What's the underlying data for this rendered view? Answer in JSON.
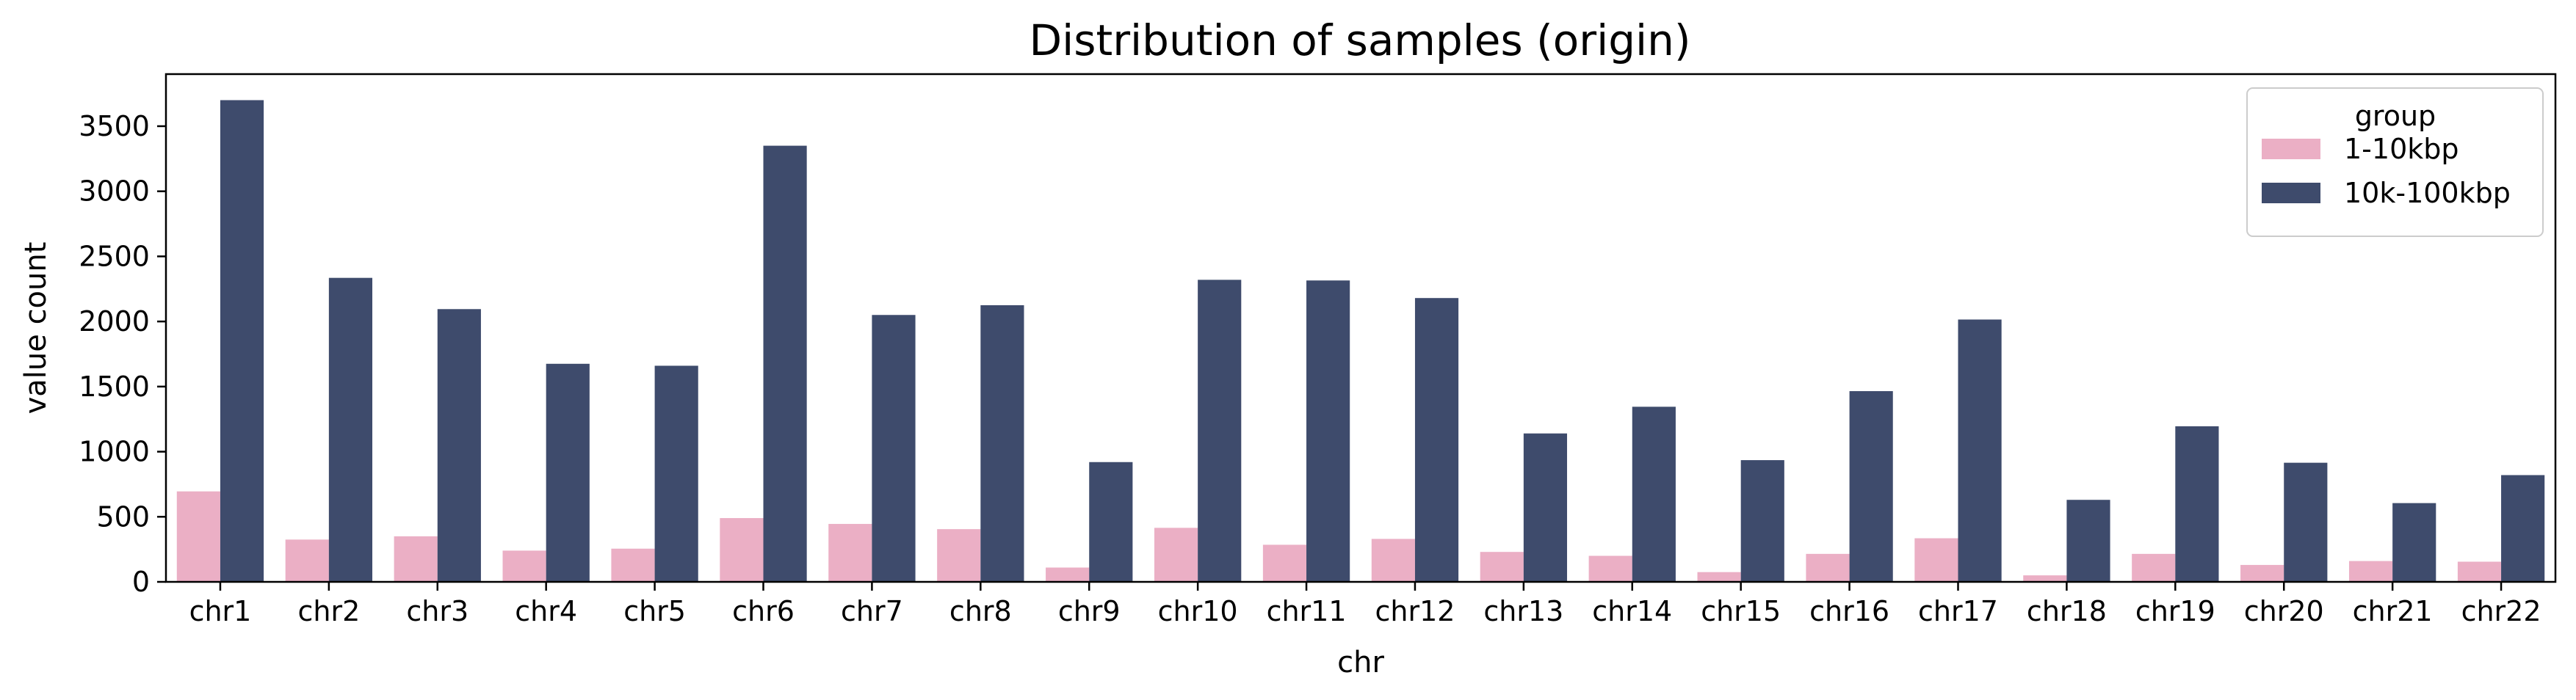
{
  "chart_data": {
    "type": "bar",
    "title": "Distribution of samples (origin)",
    "xlabel": "chr",
    "ylabel": "value count",
    "ylim": [
      0,
      3900
    ],
    "yticks": [
      0,
      500,
      1000,
      1500,
      2000,
      2500,
      3000,
      3500
    ],
    "categories": [
      "chr1",
      "chr2",
      "chr3",
      "chr4",
      "chr5",
      "chr6",
      "chr7",
      "chr8",
      "chr9",
      "chr10",
      "chr11",
      "chr12",
      "chr13",
      "chr14",
      "chr15",
      "chr16",
      "chr17",
      "chr18",
      "chr19",
      "chr20",
      "chr21",
      "chr22"
    ],
    "legend": {
      "title": "group",
      "position": "top-right"
    },
    "series": [
      {
        "name": "1-10kbp",
        "color": "#ebafc5",
        "values": [
          695,
          325,
          350,
          240,
          255,
          490,
          445,
          405,
          110,
          415,
          285,
          330,
          230,
          200,
          75,
          215,
          335,
          50,
          215,
          130,
          160,
          155
        ]
      },
      {
        "name": "10k-100kbp",
        "color": "#3e4b6c",
        "values": [
          3700,
          2335,
          2095,
          1675,
          1660,
          3350,
          2050,
          2125,
          920,
          2320,
          2315,
          2180,
          1140,
          1345,
          935,
          1465,
          2015,
          630,
          1195,
          915,
          605,
          820
        ]
      }
    ],
    "grid": false
  }
}
